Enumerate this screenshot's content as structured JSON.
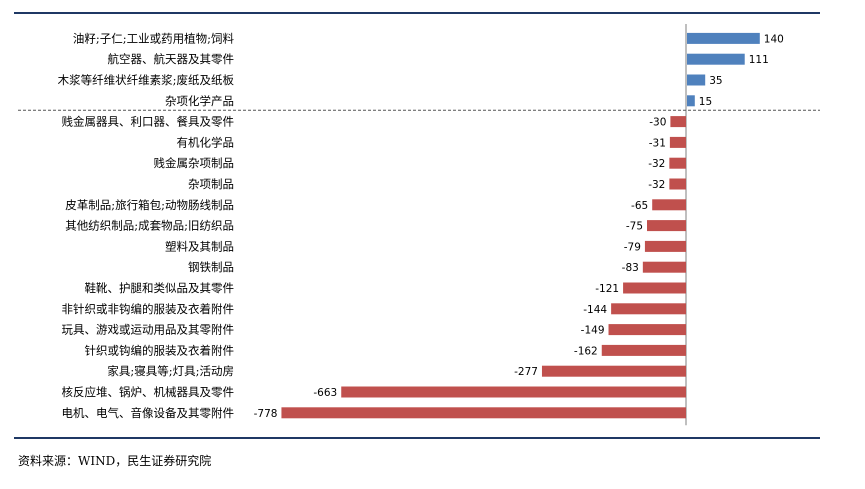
{
  "chart_data": {
    "type": "bar",
    "orientation": "horizontal",
    "categories": [
      "油籽;子仁;工业或药用植物;饲料",
      "航空器、航天器及其零件",
      "木浆等纤维状纤维素浆;废纸及纸板",
      "杂项化学产品",
      "贱金属器具、利口器、餐具及零件",
      "有机化学品",
      "贱金属杂项制品",
      "杂项制品",
      "皮革制品;旅行箱包;动物肠线制品",
      "其他纺织制品;成套物品;旧纺织品",
      "塑料及其制品",
      "钢铁制品",
      "鞋靴、护腿和类似品及其零件",
      "非针织或非钩编的服装及衣着附件",
      "玩具、游戏或运动用品及其零附件",
      "针织或钩编的服装及衣着附件",
      "家具;寝具等;灯具;活动房",
      "核反应堆、锅炉、机械器具及零件",
      "电机、电气、音像设备及其零附件"
    ],
    "values": [
      140,
      111,
      35,
      15,
      -30,
      -31,
      -32,
      -32,
      -65,
      -75,
      -79,
      -83,
      -121,
      -144,
      -149,
      -162,
      -277,
      -663,
      -778
    ],
    "xlim": [
      -778,
      140
    ],
    "positive_color": "#4f81bd",
    "negative_color": "#c0504d",
    "separator": "dashed line between positive and negative groups",
    "grid": false,
    "legend": "none"
  },
  "footer": {
    "source": "资料来源：WIND，民生证券研究院"
  }
}
